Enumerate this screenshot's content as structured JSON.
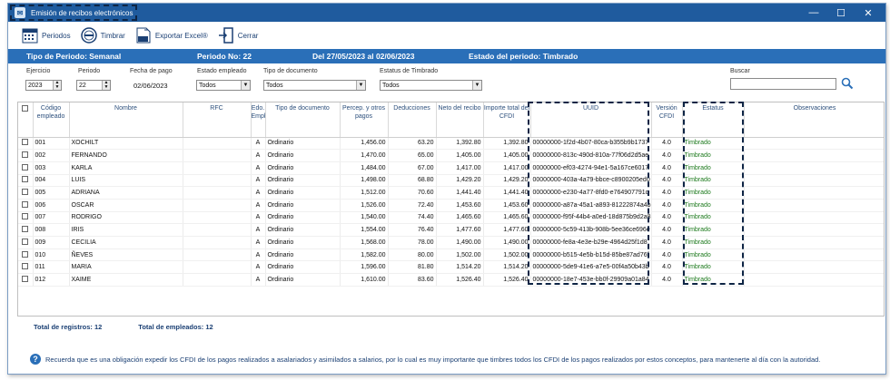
{
  "window": {
    "title": "Emisión de recibos electrónicos",
    "controls": {
      "minimize": "—",
      "maximize": "☐",
      "close": "✕"
    }
  },
  "toolbar": {
    "periodos": "Periodos",
    "timbrar": "Timbrar",
    "exportar": "Exportar Excel®",
    "cerrar": "Cerrar"
  },
  "period_bar": {
    "tipo": "Tipo de Periodo: Semanal",
    "numero": "Periodo No:  22",
    "rango": "Del 27/05/2023 al 02/06/2023",
    "estado": "Estado del periodo: Timbrado"
  },
  "filters": {
    "ejercicio_label": "Ejercicio",
    "ejercicio_value": "2023",
    "periodo_label": "Periodo",
    "periodo_value": "22",
    "fecha_label": "Fecha de pago",
    "fecha_value": "02/06/2023",
    "estado_label": "Estado empleado",
    "estado_value": "Todos",
    "tipo_doc_label": "Tipo de documento",
    "tipo_doc_value": "Todos",
    "estatus_label": "Estatus de Timbrado",
    "estatus_value": "Todos",
    "buscar_label": "Buscar"
  },
  "table": {
    "headers": {
      "codigo": "Código empleado",
      "nombre": "Nombre",
      "rfc": "RFC",
      "edo": "Edo. Empl",
      "tipo": "Tipo de documento",
      "percep": "Percep. y otros pagos",
      "deduc": "Deducciones",
      "neto": "Neto del recibo",
      "importe": "Importe total del CFDI",
      "uuid": "UUID",
      "version": "Versión CFDI",
      "estatus": "Estatus",
      "obs": "Observaciones"
    },
    "rows": [
      {
        "codigo": "001",
        "nombre": "XOCHILT",
        "edo": "A",
        "tipo": "Ordinario",
        "percep": "1,456.00",
        "deduc": "63.20",
        "neto": "1,392.80",
        "importe": "1,392.80",
        "uuid": "00000000-1f2d-4b07-80ca-b355b9b1737",
        "version": "4.0",
        "estatus": "Timbrado"
      },
      {
        "codigo": "002",
        "nombre": "FERNANDO",
        "edo": "A",
        "tipo": "Ordinario",
        "percep": "1,470.00",
        "deduc": "65.00",
        "neto": "1,405.00",
        "importe": "1,405.00",
        "uuid": "00000000-813c-490d-810a-77f06d2d5ae",
        "version": "4.0",
        "estatus": "Timbrado"
      },
      {
        "codigo": "003",
        "nombre": "KARLA",
        "edo": "A",
        "tipo": "Ordinario",
        "percep": "1,484.00",
        "deduc": "67.00",
        "neto": "1,417.00",
        "importe": "1,417.00",
        "uuid": "00000000-ef03-4274-94e1-5a167ce6017",
        "version": "4.0",
        "estatus": "Timbrado"
      },
      {
        "codigo": "004",
        "nombre": "LUIS",
        "edo": "A",
        "tipo": "Ordinario",
        "percep": "1,498.00",
        "deduc": "68.80",
        "neto": "1,429.20",
        "importe": "1,429.20",
        "uuid": "00000000-403a-4a79-bbce-c8900205ed0",
        "version": "4.0",
        "estatus": "Timbrado"
      },
      {
        "codigo": "005",
        "nombre": "ADRIANA",
        "edo": "A",
        "tipo": "Ordinario",
        "percep": "1,512.00",
        "deduc": "70.60",
        "neto": "1,441.40",
        "importe": "1,441.40",
        "uuid": "00000000-e230-4a77-8fd0-e764907791c",
        "version": "4.0",
        "estatus": "Timbrado"
      },
      {
        "codigo": "006",
        "nombre": "OSCAR",
        "edo": "A",
        "tipo": "Ordinario",
        "percep": "1,526.00",
        "deduc": "72.40",
        "neto": "1,453.60",
        "importe": "1,453.60",
        "uuid": "00000000-a87a-45a1-a893-81222874a4b",
        "version": "4.0",
        "estatus": "Timbrado"
      },
      {
        "codigo": "007",
        "nombre": "RODRIGO",
        "edo": "A",
        "tipo": "Ordinario",
        "percep": "1,540.00",
        "deduc": "74.40",
        "neto": "1,465.60",
        "importe": "1,465.60",
        "uuid": "00000000-f95f-44b4-a0ed-18d875b9d2a8",
        "version": "4.0",
        "estatus": "Timbrado"
      },
      {
        "codigo": "008",
        "nombre": "IRIS",
        "edo": "A",
        "tipo": "Ordinario",
        "percep": "1,554.00",
        "deduc": "76.40",
        "neto": "1,477.60",
        "importe": "1,477.60",
        "uuid": "00000000-5c59-413b-908b-5ee36ce696e",
        "version": "4.0",
        "estatus": "Timbrado"
      },
      {
        "codigo": "009",
        "nombre": "CECILIA",
        "edo": "A",
        "tipo": "Ordinario",
        "percep": "1,568.00",
        "deduc": "78.00",
        "neto": "1,490.00",
        "importe": "1,490.00",
        "uuid": "00000000-fe8a-4e3e-b29e-4964d25f1d8",
        "version": "4.0",
        "estatus": "Timbrado"
      },
      {
        "codigo": "010",
        "nombre": "ÑEVES",
        "edo": "A",
        "tipo": "Ordinario",
        "percep": "1,582.00",
        "deduc": "80.00",
        "neto": "1,502.00",
        "importe": "1,502.00",
        "uuid": "00000000-b515-4e5b-b15d-85be87ad76f",
        "version": "4.0",
        "estatus": "Timbrado"
      },
      {
        "codigo": "011",
        "nombre": "MARIA",
        "edo": "A",
        "tipo": "Ordinario",
        "percep": "1,596.00",
        "deduc": "81.80",
        "neto": "1,514.20",
        "importe": "1,514.20",
        "uuid": "00000000-5de9-41e6-a7e5-00f4a50b43b",
        "version": "4.0",
        "estatus": "Timbrado"
      },
      {
        "codigo": "012",
        "nombre": "XAIME",
        "edo": "A",
        "tipo": "Ordinario",
        "percep": "1,610.00",
        "deduc": "83.60",
        "neto": "1,526.40",
        "importe": "1,526.40",
        "uuid": "00000000-18e7-453e-bb0f-29909a01a84",
        "version": "4.0",
        "estatus": "Timbrado"
      }
    ]
  },
  "totals": {
    "registros": "Total de registros: 12",
    "empleados": "Total de empleados: 12"
  },
  "footer": {
    "note": "Recuerda que es una obligación expedir los CFDI de los pagos realizados a asalariados y asimilados a salarios, por lo cual es muy importante que timbres todos los CFDI de los pagos realizados por estos conceptos, para mantenerte al día con la autoridad."
  },
  "colors": {
    "title_bar": "#1f5b9e",
    "period_bar": "#2a6fb8",
    "status_green": "#1d7a1d",
    "dashed_highlight": "#0e2545"
  }
}
